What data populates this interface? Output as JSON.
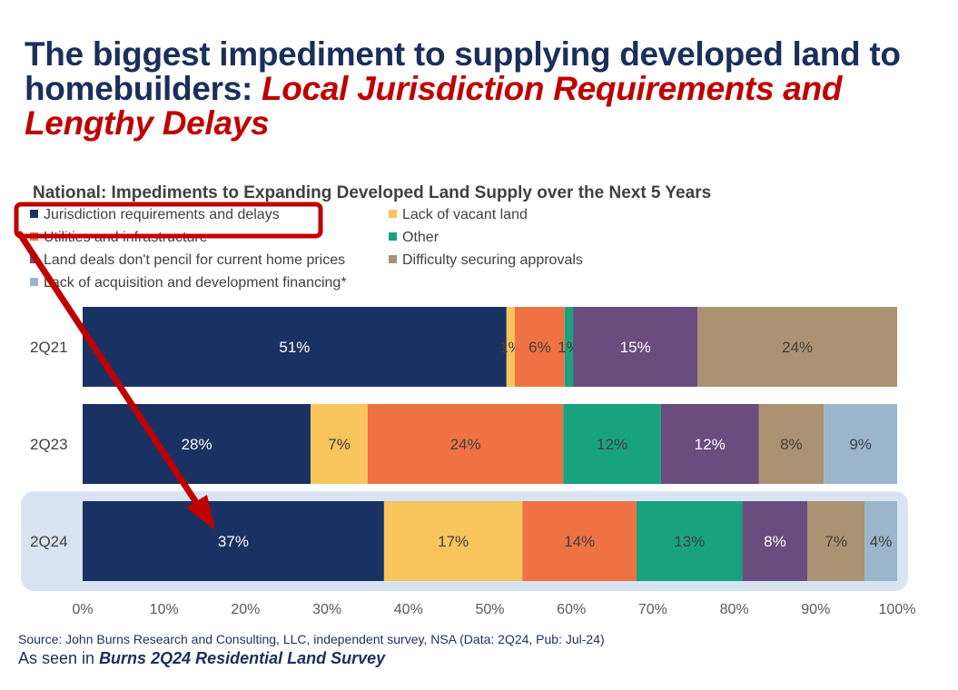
{
  "headline": {
    "text_plain": "The biggest impediment to supplying developed land to homebuilders: ",
    "text_highlight": "Local Jurisdiction Requirements and Lengthy Delays"
  },
  "footer": {
    "source": "Source: John Burns Research and Consulting, LLC, independent survey, NSA (Data: 2Q24, Pub: Jul-24)",
    "seen_prefix": "As seen in ",
    "seen_title": "Burns 2Q24 Residential Land Survey"
  },
  "chart_data": {
    "type": "bar",
    "orientation": "horizontal",
    "stacked": "100%",
    "title": "National: Impediments to Expanding Developed Land Supply over the Next 5 Years",
    "categories": [
      "2Q21",
      "2Q23",
      "2Q24"
    ],
    "xlim": [
      0,
      100
    ],
    "xticks": [
      "0%",
      "10%",
      "20%",
      "30%",
      "40%",
      "50%",
      "60%",
      "70%",
      "80%",
      "90%",
      "100%"
    ],
    "legend_placement": "top-left",
    "highlighted_category": "2Q24",
    "highlighted_series": "Jurisdiction requirements and delays",
    "series": [
      {
        "name": "Jurisdiction requirements and delays",
        "color": "#1a3263",
        "values": [
          51,
          28,
          37
        ]
      },
      {
        "name": "Lack of vacant land",
        "color": "#f7c55c",
        "values": [
          1,
          7,
          17
        ]
      },
      {
        "name": "Utilities and infrastructure",
        "color": "#ef7244",
        "values": [
          6,
          24,
          14
        ]
      },
      {
        "name": "Other",
        "color": "#18a37e",
        "values": [
          1,
          12,
          13
        ]
      },
      {
        "name": "Land deals don't pencil for current home prices",
        "color": "#6b4c7e",
        "values": [
          15,
          12,
          8
        ]
      },
      {
        "name": "Difficulty securing approvals",
        "color": "#ab9272",
        "values": [
          24,
          8,
          7
        ]
      },
      {
        "name": "Lack of acquisition and development financing*",
        "color": "#9bb6cc",
        "values": [
          null,
          9,
          4
        ]
      }
    ]
  }
}
